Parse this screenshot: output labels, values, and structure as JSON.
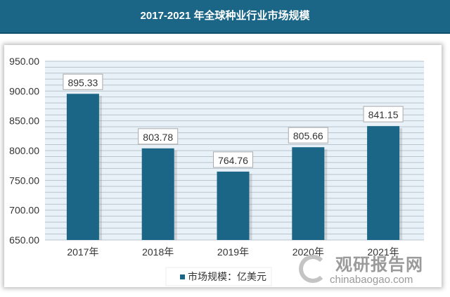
{
  "title": "2017-2021 年全球种业行业市场规模",
  "chart_data": {
    "type": "bar",
    "title": "2017-2021 年全球种业行业市场规模",
    "categories": [
      "2017年",
      "2018年",
      "2019年",
      "2020年",
      "2021年"
    ],
    "series": [
      {
        "name": "市场规模：亿美元",
        "values": [
          895.33,
          803.78,
          764.76,
          805.66,
          841.15
        ]
      }
    ],
    "data_labels": [
      "895.33",
      "803.78",
      "764.76",
      "805.66",
      "841.15"
    ],
    "ylim": [
      650,
      950
    ],
    "yticks": [
      "650.00",
      "700.00",
      "750.00",
      "800.00",
      "850.00",
      "900.00",
      "950.00"
    ],
    "grid": true,
    "legend": "bottom",
    "colors": {
      "bar": "#1b6687",
      "plot_bg": "#e8f1f8",
      "grid": "#b9c4cc"
    }
  },
  "watermark": {
    "cn": "观研报告网",
    "en": "chinabaogao.com"
  }
}
